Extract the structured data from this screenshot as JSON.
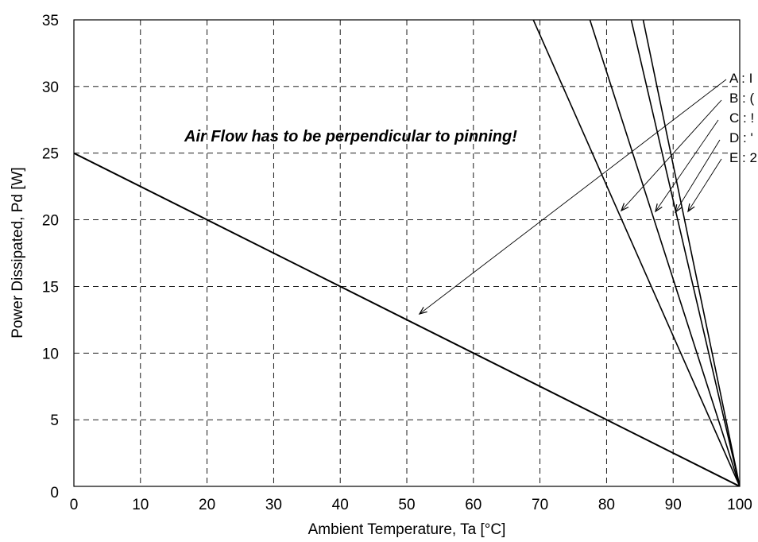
{
  "chart_data": {
    "type": "line",
    "xlabel": "Ambient Temperature, Ta [°C]",
    "ylabel": "Power Dissipated, Pd [W]",
    "xlim": [
      0,
      100
    ],
    "ylim": [
      0,
      35
    ],
    "xticks": [
      0,
      10,
      20,
      30,
      40,
      50,
      60,
      70,
      80,
      90,
      100
    ],
    "yticks": [
      0,
      5,
      10,
      15,
      20,
      25,
      30,
      35
    ],
    "x_tick_labels": [
      "0",
      "10",
      "20",
      "30",
      "40",
      "50",
      "60",
      "70",
      "80",
      "90",
      "100"
    ],
    "y_tick_labels": [
      "0",
      "5",
      "10",
      "15",
      "20",
      "25",
      "30",
      "35"
    ],
    "grid": "dashed",
    "annotation": "Air Flow has to be perpendicular to pinning!",
    "legend_placement": "right, clipped",
    "series": [
      {
        "name": "A : I",
        "points": [
          [
            0,
            25
          ],
          [
            100,
            0
          ]
        ]
      },
      {
        "name": "B : (",
        "points": [
          [
            69,
            35
          ],
          [
            100,
            0
          ]
        ]
      },
      {
        "name": "C : !",
        "points": [
          [
            77.5,
            35
          ],
          [
            100,
            0
          ]
        ]
      },
      {
        "name": "D : '",
        "points": [
          [
            83.7,
            35
          ],
          [
            100,
            0
          ]
        ]
      },
      {
        "name": "E : 2",
        "points": [
          [
            85.5,
            35
          ],
          [
            100,
            0
          ]
        ]
      }
    ]
  }
}
